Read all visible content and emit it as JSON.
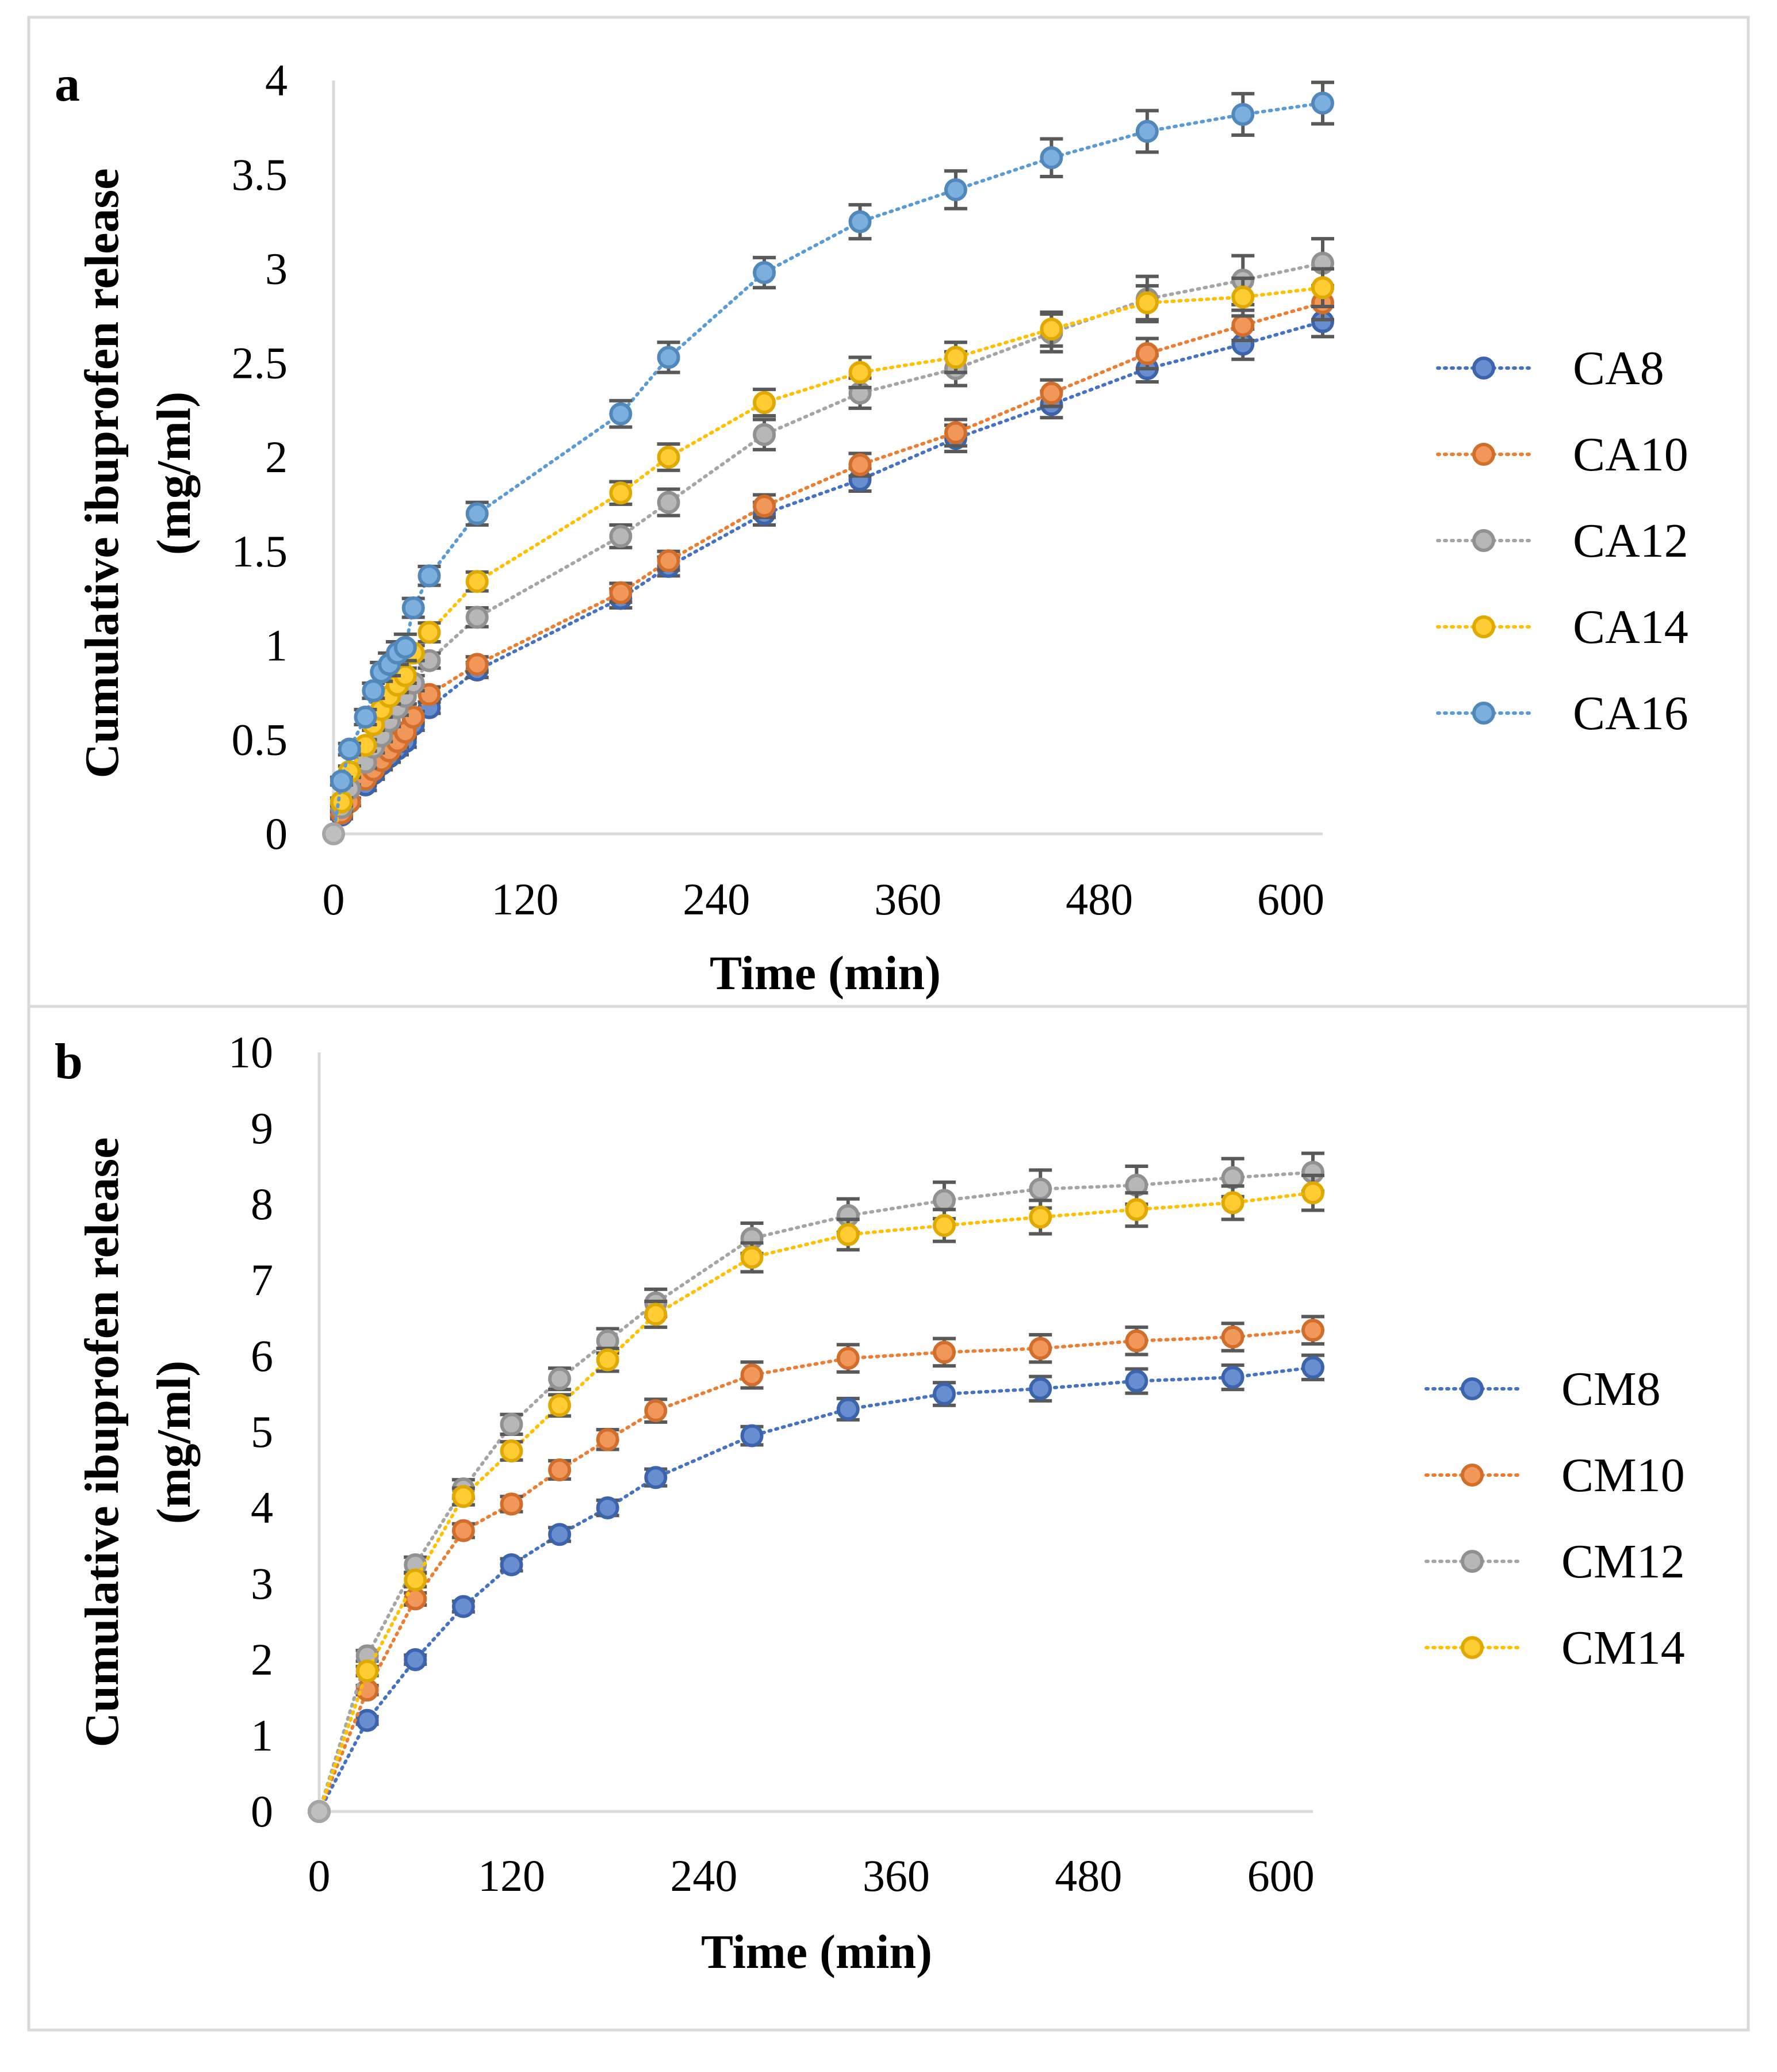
{
  "chart_data": [
    {
      "panel": "a",
      "type": "line",
      "title": "",
      "xlabel": "Time (min)",
      "ylabel_line1": "Cumulative ibuprofen release",
      "ylabel_line2": "(mg/ml)",
      "xlim": [
        0,
        620
      ],
      "ylim": [
        0,
        4
      ],
      "xticks": [
        0,
        120,
        240,
        360,
        480,
        600
      ],
      "yticks": [
        0,
        0.5,
        1,
        1.5,
        2,
        2.5,
        3,
        3.5,
        4
      ],
      "legend_position": "right",
      "series": [
        {
          "name": "CA8",
          "color": "#4472C4",
          "x": [
            5,
            10,
            20,
            25,
            30,
            35,
            40,
            45,
            50,
            60,
            90,
            180,
            210,
            270,
            330,
            390,
            450,
            510,
            570,
            620
          ],
          "y": [
            0.1,
            0.17,
            0.26,
            0.32,
            0.37,
            0.41,
            0.45,
            0.49,
            0.58,
            0.67,
            0.87,
            1.25,
            1.42,
            1.7,
            1.88,
            2.1,
            2.28,
            2.47,
            2.6,
            2.72
          ],
          "err": [
            0.02,
            0.02,
            0.03,
            0.03,
            0.03,
            0.03,
            0.03,
            0.03,
            0.03,
            0.03,
            0.04,
            0.05,
            0.05,
            0.06,
            0.06,
            0.07,
            0.07,
            0.07,
            0.08,
            0.08
          ]
        },
        {
          "name": "CA10",
          "color": "#ED7D31",
          "x": [
            5,
            10,
            20,
            25,
            30,
            35,
            40,
            45,
            50,
            60,
            90,
            180,
            210,
            270,
            330,
            390,
            450,
            510,
            570,
            620
          ],
          "y": [
            0.11,
            0.17,
            0.29,
            0.34,
            0.39,
            0.44,
            0.49,
            0.54,
            0.62,
            0.74,
            0.9,
            1.28,
            1.45,
            1.74,
            1.96,
            2.13,
            2.34,
            2.55,
            2.7,
            2.82
          ],
          "err": [
            0.02,
            0.02,
            0.03,
            0.03,
            0.03,
            0.03,
            0.03,
            0.03,
            0.03,
            0.04,
            0.04,
            0.05,
            0.05,
            0.06,
            0.06,
            0.07,
            0.07,
            0.08,
            0.08,
            0.09
          ]
        },
        {
          "name": "CA12",
          "color": "#A5A5A5",
          "x": [
            5,
            10,
            20,
            25,
            30,
            35,
            40,
            45,
            50,
            60,
            90,
            180,
            210,
            270,
            330,
            390,
            450,
            510,
            570,
            620
          ],
          "y": [
            0.14,
            0.24,
            0.38,
            0.46,
            0.52,
            0.6,
            0.67,
            0.73,
            0.8,
            0.92,
            1.15,
            1.58,
            1.76,
            2.12,
            2.34,
            2.47,
            2.66,
            2.84,
            2.94,
            3.03
          ],
          "err": [
            0.02,
            0.02,
            0.03,
            0.03,
            0.03,
            0.03,
            0.04,
            0.04,
            0.04,
            0.04,
            0.05,
            0.06,
            0.07,
            0.08,
            0.08,
            0.09,
            0.1,
            0.12,
            0.13,
            0.13
          ]
        },
        {
          "name": "CA14",
          "color": "#FFC000",
          "x": [
            5,
            10,
            20,
            25,
            30,
            35,
            40,
            45,
            50,
            60,
            90,
            180,
            210,
            270,
            330,
            390,
            450,
            510,
            570,
            620
          ],
          "y": [
            0.17,
            0.33,
            0.47,
            0.58,
            0.66,
            0.73,
            0.79,
            0.84,
            0.96,
            1.07,
            1.34,
            1.81,
            2.0,
            2.29,
            2.45,
            2.53,
            2.68,
            2.82,
            2.85,
            2.9
          ],
          "err": [
            0.02,
            0.03,
            0.03,
            0.03,
            0.04,
            0.04,
            0.04,
            0.04,
            0.04,
            0.05,
            0.05,
            0.06,
            0.07,
            0.07,
            0.08,
            0.08,
            0.09,
            0.09,
            0.1,
            0.1
          ]
        },
        {
          "name": "CA16",
          "color": "#5B9BD5",
          "x": [
            5,
            10,
            20,
            25,
            30,
            35,
            40,
            45,
            50,
            60,
            90,
            180,
            210,
            270,
            330,
            390,
            450,
            510,
            570,
            620
          ],
          "y": [
            0.28,
            0.45,
            0.62,
            0.76,
            0.86,
            0.9,
            0.96,
            0.99,
            1.2,
            1.37,
            1.7,
            2.23,
            2.53,
            2.98,
            3.25,
            3.42,
            3.59,
            3.73,
            3.82,
            3.88
          ],
          "err": [
            0.02,
            0.03,
            0.04,
            0.04,
            0.05,
            0.06,
            0.06,
            0.07,
            0.05,
            0.05,
            0.06,
            0.07,
            0.08,
            0.08,
            0.09,
            0.1,
            0.1,
            0.11,
            0.11,
            0.11
          ]
        }
      ]
    },
    {
      "panel": "b",
      "type": "line",
      "title": "",
      "xlabel": "Time (min)",
      "ylabel_line1": "Cumulative ibuprofen release",
      "ylabel_line2": "(mg/ml)",
      "xlim": [
        0,
        620
      ],
      "ylim": [
        0,
        10
      ],
      "xticks": [
        0,
        120,
        240,
        360,
        480,
        600
      ],
      "yticks": [
        0,
        1,
        2,
        3,
        4,
        5,
        6,
        7,
        8,
        9,
        10
      ],
      "legend_position": "right",
      "series": [
        {
          "name": "CM8",
          "color": "#4472C4",
          "x": [
            0,
            30,
            60,
            90,
            120,
            150,
            180,
            210,
            270,
            330,
            390,
            450,
            510,
            570,
            620
          ],
          "y": [
            0,
            1.2,
            2.0,
            2.7,
            3.25,
            3.65,
            4.0,
            4.4,
            4.95,
            5.3,
            5.5,
            5.57,
            5.67,
            5.72,
            5.85
          ],
          "err": [
            0,
            0.05,
            0.06,
            0.07,
            0.08,
            0.09,
            0.1,
            0.11,
            0.12,
            0.14,
            0.15,
            0.16,
            0.16,
            0.16,
            0.16
          ]
        },
        {
          "name": "CM10",
          "color": "#ED7D31",
          "x": [
            0,
            30,
            60,
            90,
            120,
            150,
            180,
            210,
            270,
            330,
            390,
            450,
            510,
            570,
            620
          ],
          "y": [
            0,
            1.6,
            2.8,
            3.7,
            4.05,
            4.5,
            4.9,
            5.28,
            5.75,
            5.97,
            6.05,
            6.1,
            6.2,
            6.25,
            6.34
          ],
          "err": [
            0,
            0.06,
            0.08,
            0.09,
            0.1,
            0.12,
            0.13,
            0.15,
            0.17,
            0.18,
            0.18,
            0.18,
            0.18,
            0.18,
            0.18
          ]
        },
        {
          "name": "CM12",
          "color": "#A5A5A5",
          "x": [
            0,
            30,
            60,
            90,
            120,
            150,
            180,
            210,
            270,
            330,
            390,
            450,
            510,
            570,
            620
          ],
          "y": [
            0,
            2.05,
            3.25,
            4.25,
            5.1,
            5.7,
            6.2,
            6.7,
            7.55,
            7.85,
            8.05,
            8.2,
            8.25,
            8.35,
            8.42
          ],
          "err": [
            0,
            0.07,
            0.1,
            0.12,
            0.13,
            0.14,
            0.16,
            0.18,
            0.2,
            0.22,
            0.24,
            0.25,
            0.25,
            0.25,
            0.25
          ]
        },
        {
          "name": "CM14",
          "color": "#FFC000",
          "x": [
            0,
            30,
            60,
            90,
            120,
            150,
            180,
            210,
            270,
            330,
            390,
            450,
            510,
            570,
            620
          ],
          "y": [
            0,
            1.85,
            3.05,
            4.15,
            4.75,
            5.35,
            5.95,
            6.55,
            7.3,
            7.6,
            7.72,
            7.83,
            7.93,
            8.02,
            8.15
          ],
          "err": [
            0,
            0.06,
            0.09,
            0.11,
            0.12,
            0.14,
            0.15,
            0.17,
            0.19,
            0.2,
            0.21,
            0.22,
            0.22,
            0.22,
            0.23
          ]
        }
      ]
    }
  ]
}
